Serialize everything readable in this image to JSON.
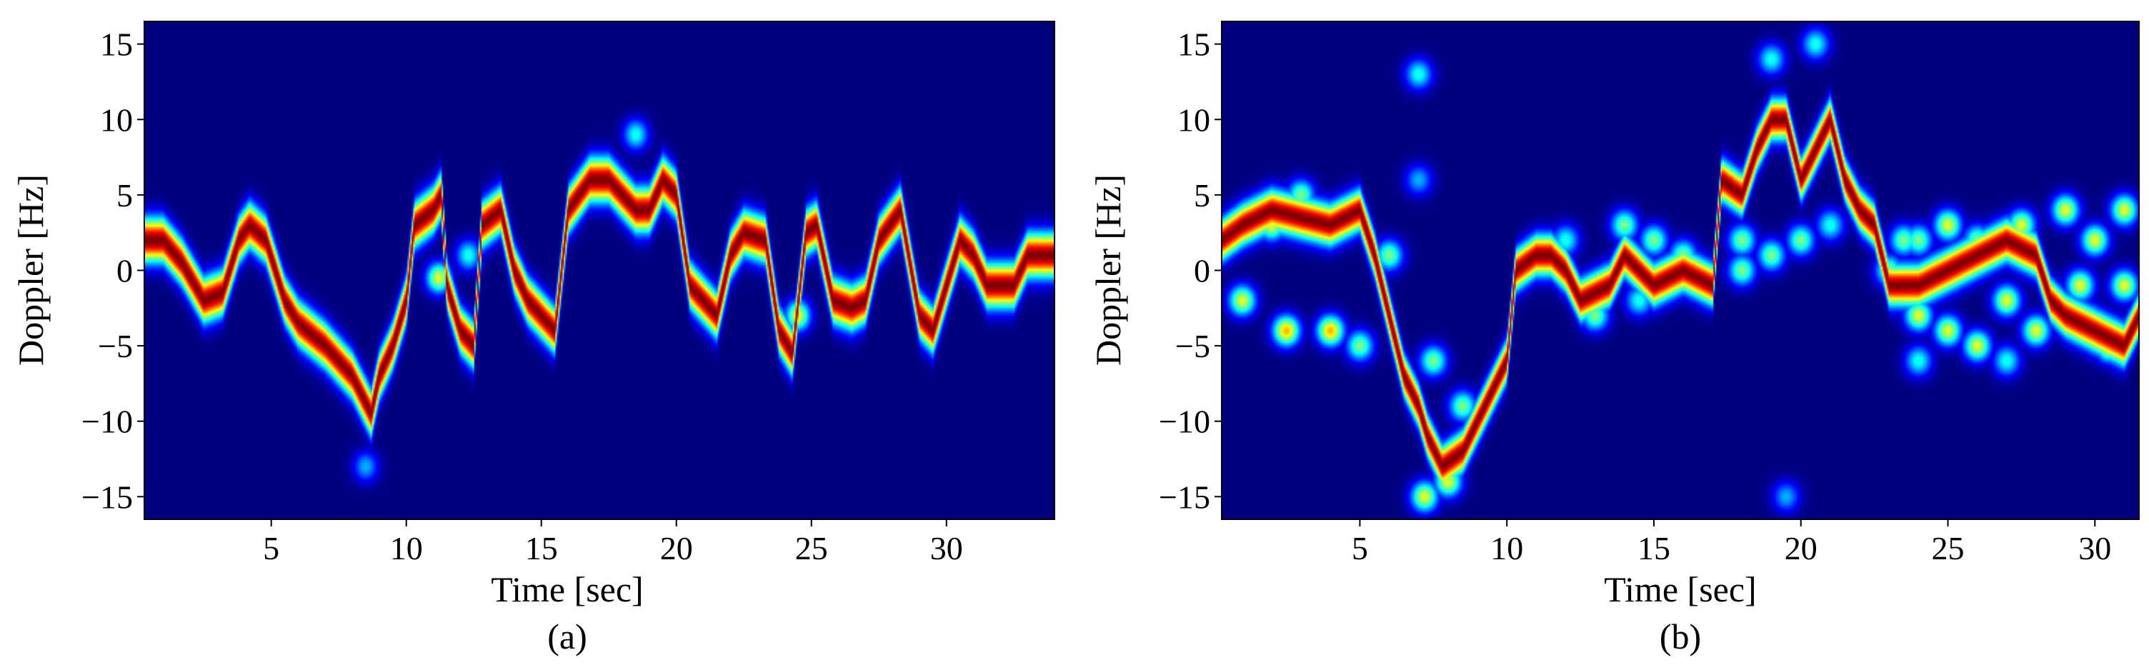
{
  "figure": {
    "panels": [
      {
        "caption": "(a)",
        "xlabel": "Time [sec]",
        "ylabel": "Doppler [Hz]"
      },
      {
        "caption": "(b)",
        "xlabel": "Time [sec]",
        "ylabel": "Doppler [Hz]"
      }
    ]
  },
  "chart_data": [
    {
      "type": "heatmap",
      "caption": "(a)",
      "xlabel": "Time [sec]",
      "ylabel": "Doppler [Hz]",
      "xlim": [
        0.3,
        34
      ],
      "ylim": [
        -16.5,
        16.5
      ],
      "xticks": [
        5,
        10,
        15,
        20,
        25,
        30
      ],
      "yticks": [
        15,
        10,
        5,
        0,
        -5,
        -10,
        -15
      ],
      "colormap": "jet",
      "colors": {
        "background": "#00007f",
        "blue": "#0000ff",
        "cyan": "#00ffff",
        "yellow": "#ffff00",
        "red": "#ff0000",
        "darkred": "#7f0000"
      },
      "spread": 1.0,
      "ridge": [
        [
          0.3,
          2
        ],
        [
          1,
          2
        ],
        [
          1.7,
          0.5
        ],
        [
          2.5,
          -2
        ],
        [
          3.2,
          -1.5
        ],
        [
          3.8,
          2
        ],
        [
          4.2,
          3
        ],
        [
          4.8,
          2
        ],
        [
          5.5,
          -2
        ],
        [
          6,
          -3.5
        ],
        [
          7,
          -5
        ],
        [
          7.5,
          -6
        ],
        [
          8,
          -7
        ],
        [
          8.7,
          -9.5
        ],
        [
          9,
          -7
        ],
        [
          9.5,
          -5
        ],
        [
          10,
          -2
        ],
        [
          10.3,
          3
        ],
        [
          11,
          4
        ],
        [
          11.3,
          5
        ],
        [
          11.5,
          -1
        ],
        [
          12,
          -4
        ],
        [
          12.5,
          -5
        ],
        [
          12.8,
          3
        ],
        [
          13.5,
          4
        ],
        [
          14,
          0
        ],
        [
          14.5,
          -2
        ],
        [
          15,
          -3
        ],
        [
          15.5,
          -4
        ],
        [
          16,
          4
        ],
        [
          16.8,
          6
        ],
        [
          17.5,
          6
        ],
        [
          18.5,
          4
        ],
        [
          19,
          4
        ],
        [
          19.5,
          6
        ],
        [
          20,
          5
        ],
        [
          20.5,
          -1
        ],
        [
          21.5,
          -3
        ],
        [
          22,
          1
        ],
        [
          22.5,
          2.5
        ],
        [
          23.3,
          2
        ],
        [
          23.8,
          -4
        ],
        [
          24.3,
          -5.5
        ],
        [
          24.8,
          2.5
        ],
        [
          25.2,
          3
        ],
        [
          25.8,
          -2
        ],
        [
          26.5,
          -2.5
        ],
        [
          27,
          -2
        ],
        [
          27.5,
          2
        ],
        [
          28.3,
          4
        ],
        [
          29,
          -3
        ],
        [
          29.5,
          -4
        ],
        [
          30,
          -1
        ],
        [
          30.5,
          2
        ],
        [
          31,
          1
        ],
        [
          31.5,
          -1
        ],
        [
          32.5,
          -1
        ],
        [
          33,
          1
        ],
        [
          34,
          1
        ]
      ],
      "blobs": [
        [
          11.2,
          -0.5,
          0.6
        ],
        [
          12.3,
          1,
          0.4
        ],
        [
          24.5,
          -3,
          0.6
        ],
        [
          8.5,
          -13,
          0.3
        ],
        [
          18.5,
          9,
          0.4
        ]
      ]
    },
    {
      "type": "heatmap",
      "caption": "(b)",
      "xlabel": "Time [sec]",
      "ylabel": "Doppler [Hz]",
      "xlim": [
        0.3,
        31.5
      ],
      "ylim": [
        -16.5,
        16.5
      ],
      "xticks": [
        5,
        10,
        15,
        20,
        25,
        30
      ],
      "yticks": [
        15,
        10,
        5,
        0,
        -5,
        -10,
        -15
      ],
      "colormap": "jet",
      "colors": {
        "background": "#00007f",
        "blue": "#0000ff",
        "cyan": "#00ffff",
        "yellow": "#ffff00",
        "red": "#ff0000",
        "darkred": "#7f0000"
      },
      "spread": 0.9,
      "ridge": [
        [
          0.3,
          2
        ],
        [
          1,
          3
        ],
        [
          2,
          4
        ],
        [
          3,
          3.5
        ],
        [
          4,
          3
        ],
        [
          5,
          4
        ],
        [
          5.5,
          1
        ],
        [
          6,
          -3
        ],
        [
          6.5,
          -7
        ],
        [
          7,
          -9
        ],
        [
          7.3,
          -11
        ],
        [
          7.8,
          -13
        ],
        [
          8.5,
          -12
        ],
        [
          9,
          -10
        ],
        [
          9.5,
          -8
        ],
        [
          10,
          -6
        ],
        [
          10.3,
          0
        ],
        [
          11,
          1
        ],
        [
          11.5,
          1
        ],
        [
          12,
          0
        ],
        [
          12.5,
          -2
        ],
        [
          13.5,
          -1
        ],
        [
          14,
          1
        ],
        [
          15,
          -1
        ],
        [
          16,
          0
        ],
        [
          17,
          -1
        ],
        [
          17.3,
          6
        ],
        [
          18,
          5
        ],
        [
          18.5,
          8
        ],
        [
          19,
          10
        ],
        [
          19.5,
          10
        ],
        [
          20,
          6
        ],
        [
          20.5,
          8
        ],
        [
          21,
          10
        ],
        [
          21.5,
          6
        ],
        [
          22,
          4
        ],
        [
          22.5,
          3
        ],
        [
          23,
          -1
        ],
        [
          24,
          -1
        ],
        [
          25,
          0
        ],
        [
          26,
          1
        ],
        [
          27,
          2
        ],
        [
          28,
          1
        ],
        [
          28.5,
          -2
        ],
        [
          29,
          -3
        ],
        [
          30,
          -4
        ],
        [
          31,
          -5
        ],
        [
          31.5,
          -3
        ]
      ],
      "blobs": [
        [
          1,
          -2,
          0.6
        ],
        [
          2.5,
          -4,
          0.7
        ],
        [
          4,
          -4,
          0.7
        ],
        [
          5,
          -5,
          0.5
        ],
        [
          2,
          3,
          0.6
        ],
        [
          3,
          5,
          0.5
        ],
        [
          6,
          1,
          0.5
        ],
        [
          7.2,
          -15,
          0.6
        ],
        [
          8,
          -14,
          0.6
        ],
        [
          7.5,
          -6,
          0.5
        ],
        [
          8.5,
          -9,
          0.5
        ],
        [
          7,
          13,
          0.4
        ],
        [
          7,
          6,
          0.3
        ],
        [
          12,
          2,
          0.4
        ],
        [
          13,
          -3,
          0.5
        ],
        [
          14,
          3,
          0.5
        ],
        [
          15,
          2,
          0.5
        ],
        [
          16,
          1,
          0.5
        ],
        [
          14.5,
          -2,
          0.4
        ],
        [
          18,
          2,
          0.5
        ],
        [
          19,
          1,
          0.5
        ],
        [
          20,
          2,
          0.5
        ],
        [
          19,
          14,
          0.4
        ],
        [
          20.5,
          15,
          0.4
        ],
        [
          18,
          0,
          0.5
        ],
        [
          21,
          3,
          0.4
        ],
        [
          23.5,
          2,
          0.5
        ],
        [
          24,
          -3,
          0.6
        ],
        [
          25,
          -4,
          0.6
        ],
        [
          26,
          -5,
          0.6
        ],
        [
          25,
          3,
          0.6
        ],
        [
          26,
          2,
          0.5
        ],
        [
          27,
          -2,
          0.6
        ],
        [
          27.5,
          3,
          0.6
        ],
        [
          28,
          -4,
          0.6
        ],
        [
          29,
          4,
          0.6
        ],
        [
          29.5,
          -1,
          0.6
        ],
        [
          30,
          2,
          0.6
        ],
        [
          30.5,
          -5,
          0.7
        ],
        [
          31,
          4,
          0.6
        ],
        [
          31,
          -1,
          0.6
        ],
        [
          24,
          -6,
          0.4
        ],
        [
          27,
          -6,
          0.4
        ],
        [
          19.5,
          -15,
          0.3
        ],
        [
          23,
          0,
          0.5
        ],
        [
          24,
          2,
          0.5
        ]
      ]
    }
  ]
}
